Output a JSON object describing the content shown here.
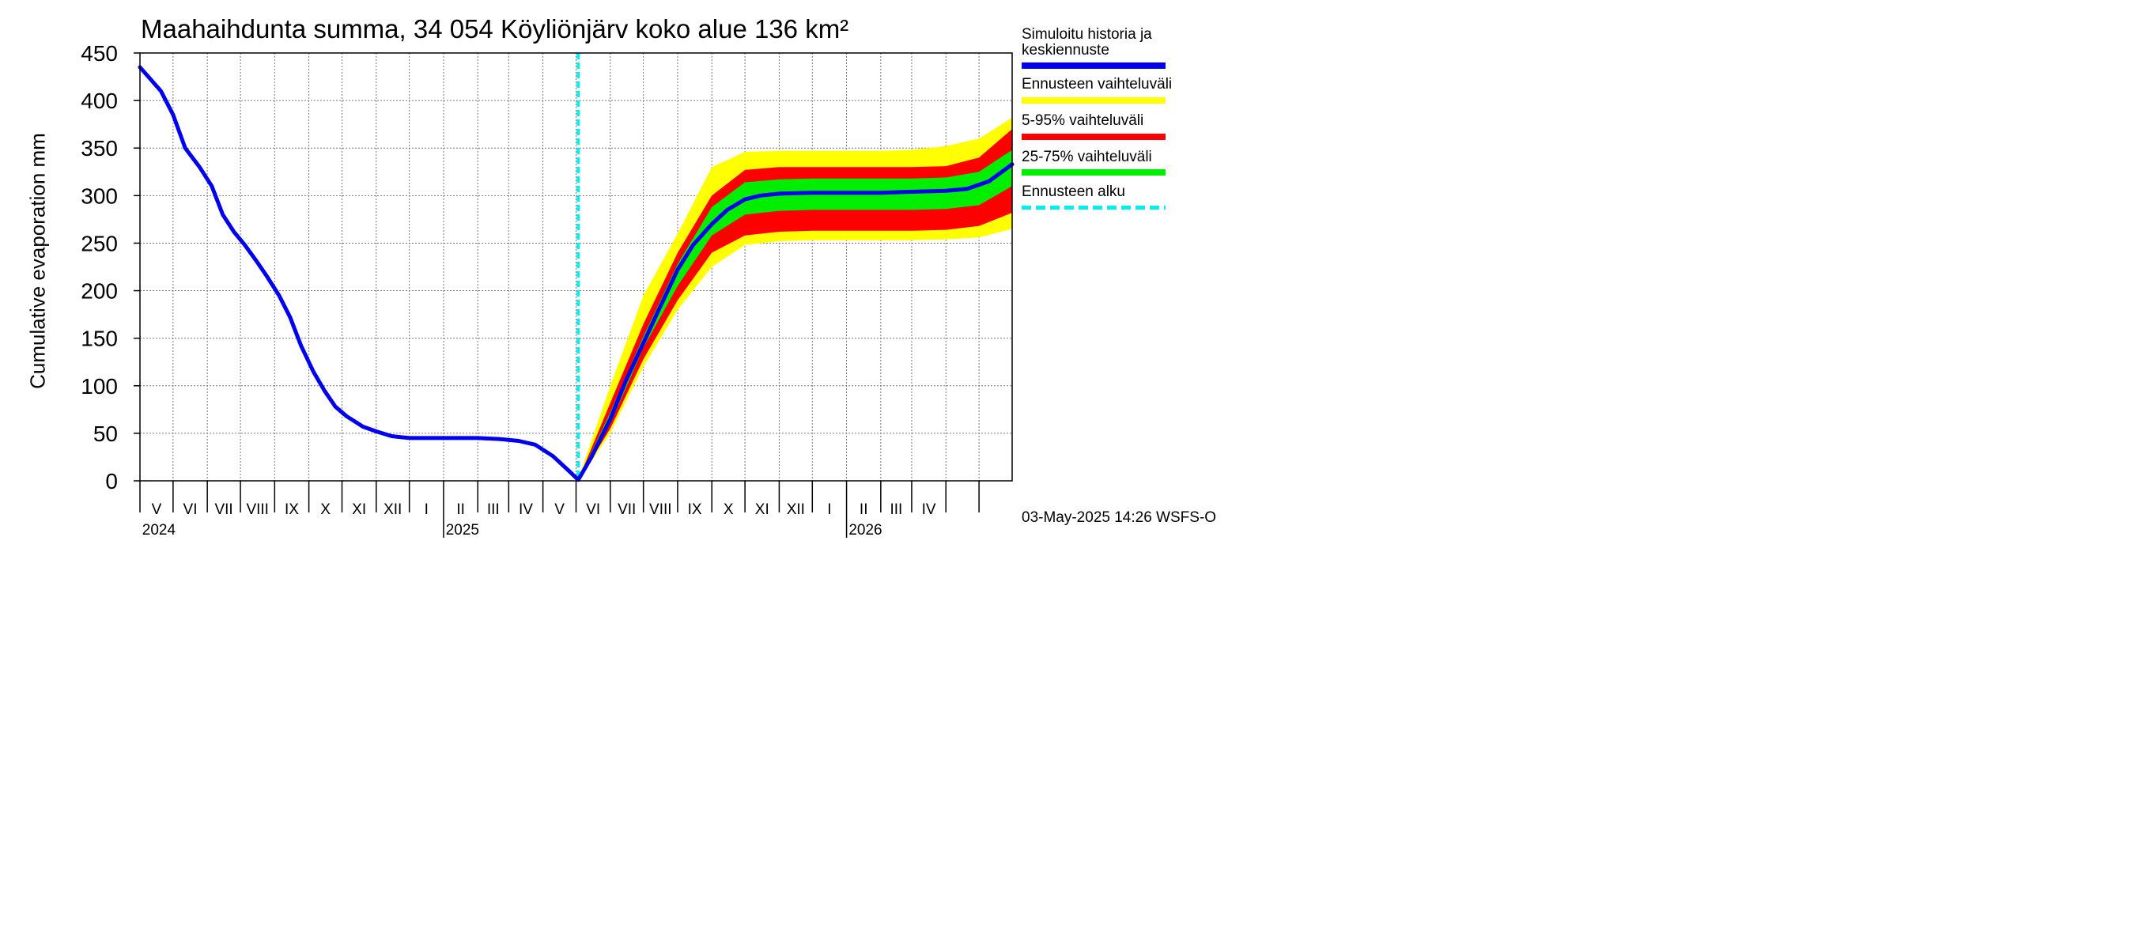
{
  "chart_data": {
    "type": "line",
    "title": "Maahaihdunta summa, 34 054 Köyliönjärv koko alue 136 km²",
    "ylabel": "Cumulative evaporation   mm",
    "ylim": [
      0,
      450
    ],
    "yticks": [
      0,
      50,
      100,
      150,
      200,
      250,
      300,
      350,
      400,
      450
    ],
    "xlim": [
      "2024-04-01",
      "2026-05-31"
    ],
    "month_labels": [
      "V",
      "VI",
      "VII",
      "VIII",
      "IX",
      "X",
      "XI",
      "XII",
      "I",
      "II",
      "III",
      "IV",
      "V",
      "VI",
      "VII",
      "VIII",
      "IX",
      "X",
      "XI",
      "XII",
      "I",
      "II",
      "III",
      "IV"
    ],
    "year_labels": [
      "2024",
      "2025",
      "2026"
    ],
    "grid": true,
    "forecast_start": "2025-05-03",
    "series": [
      {
        "name": "Simuloitu historia ja keskiennuste",
        "color": "#0000ee",
        "x": [
          "2024-04-01",
          "2024-04-20",
          "2024-05-01",
          "2024-05-12",
          "2024-05-25",
          "2024-06-05",
          "2024-06-15",
          "2024-06-25",
          "2024-07-05",
          "2024-07-15",
          "2024-07-25",
          "2024-08-05",
          "2024-08-15",
          "2024-08-25",
          "2024-09-05",
          "2024-09-15",
          "2024-09-25",
          "2024-10-05",
          "2024-10-20",
          "2024-11-01",
          "2024-11-15",
          "2024-12-01",
          "2025-01-01",
          "2025-02-01",
          "2025-02-20",
          "2025-03-10",
          "2025-03-25",
          "2025-04-10",
          "2025-04-25",
          "2025-05-03",
          "2025-05-15",
          "2025-06-01",
          "2025-06-15",
          "2025-07-01",
          "2025-07-15",
          "2025-08-01",
          "2025-08-15",
          "2025-09-01",
          "2025-09-15",
          "2025-10-01",
          "2025-10-15",
          "2025-11-01",
          "2025-12-01",
          "2026-01-01",
          "2026-02-01",
          "2026-03-01",
          "2026-04-01",
          "2026-04-20",
          "2026-05-10",
          "2026-05-31"
        ],
        "values": [
          435,
          410,
          385,
          350,
          330,
          310,
          280,
          262,
          248,
          232,
          215,
          195,
          172,
          142,
          115,
          95,
          78,
          68,
          57,
          52,
          47,
          45,
          45,
          45,
          44,
          42,
          38,
          26,
          10,
          1,
          25,
          65,
          105,
          145,
          180,
          222,
          248,
          270,
          285,
          296,
          300,
          302,
          303,
          303,
          303,
          304,
          305,
          307,
          315,
          333
        ]
      }
    ],
    "bands": [
      {
        "name": "Ennusteen vaihteluväli",
        "color": "#ffff00",
        "x": [
          "2025-05-03",
          "2025-06-01",
          "2025-07-01",
          "2025-08-01",
          "2025-09-01",
          "2025-10-01",
          "2025-11-01",
          "2025-12-01",
          "2026-01-01",
          "2026-02-01",
          "2026-03-01",
          "2026-04-01",
          "2026-05-01",
          "2026-05-31"
        ],
        "upper": [
          2,
          100,
          195,
          260,
          330,
          346,
          347,
          347,
          347,
          347,
          348,
          352,
          360,
          382
        ],
        "lower": [
          0,
          50,
          120,
          180,
          225,
          248,
          252,
          253,
          253,
          253,
          253,
          254,
          256,
          265
        ]
      },
      {
        "name": "5-95% vaihteluväli",
        "color": "#ff0000",
        "x": [
          "2025-05-03",
          "2025-06-01",
          "2025-07-01",
          "2025-08-01",
          "2025-09-01",
          "2025-10-01",
          "2025-11-01",
          "2025-12-01",
          "2026-01-01",
          "2026-02-01",
          "2026-03-01",
          "2026-04-01",
          "2026-05-01",
          "2026-05-31"
        ],
        "upper": [
          1,
          82,
          165,
          240,
          300,
          327,
          330,
          330,
          330,
          330,
          330,
          331,
          340,
          370
        ],
        "lower": [
          0,
          55,
          128,
          190,
          240,
          258,
          262,
          263,
          263,
          263,
          263,
          264,
          268,
          282
        ]
      },
      {
        "name": "25-75% vaihteluväli",
        "color": "#00ee00",
        "x": [
          "2025-05-03",
          "2025-06-01",
          "2025-07-01",
          "2025-08-01",
          "2025-09-01",
          "2025-10-01",
          "2025-11-01",
          "2025-12-01",
          "2026-01-01",
          "2026-02-01",
          "2026-03-01",
          "2026-04-01",
          "2026-05-01",
          "2026-05-31"
        ],
        "upper": [
          1,
          72,
          152,
          228,
          288,
          314,
          317,
          318,
          318,
          318,
          318,
          319,
          325,
          348
        ],
        "lower": [
          0,
          60,
          140,
          205,
          258,
          280,
          284,
          285,
          285,
          285,
          285,
          286,
          290,
          310
        ]
      }
    ],
    "legend": [
      {
        "label": "Simuloitu historia ja keskiennuste",
        "color": "#0000ee",
        "style": "solid"
      },
      {
        "label": "Ennusteen vaihteluväli",
        "color": "#ffff00",
        "style": "solid"
      },
      {
        "label": "5-95% vaihteluväli",
        "color": "#ff0000",
        "style": "solid"
      },
      {
        "label": "25-75% vaihteluväli",
        "color": "#00ee00",
        "style": "solid"
      },
      {
        "label": "Ennusteen alku",
        "color": "#00eeee",
        "style": "dashed"
      }
    ],
    "legend_placement": "right",
    "footer": "03-May-2025 14:26 WSFS-O"
  }
}
